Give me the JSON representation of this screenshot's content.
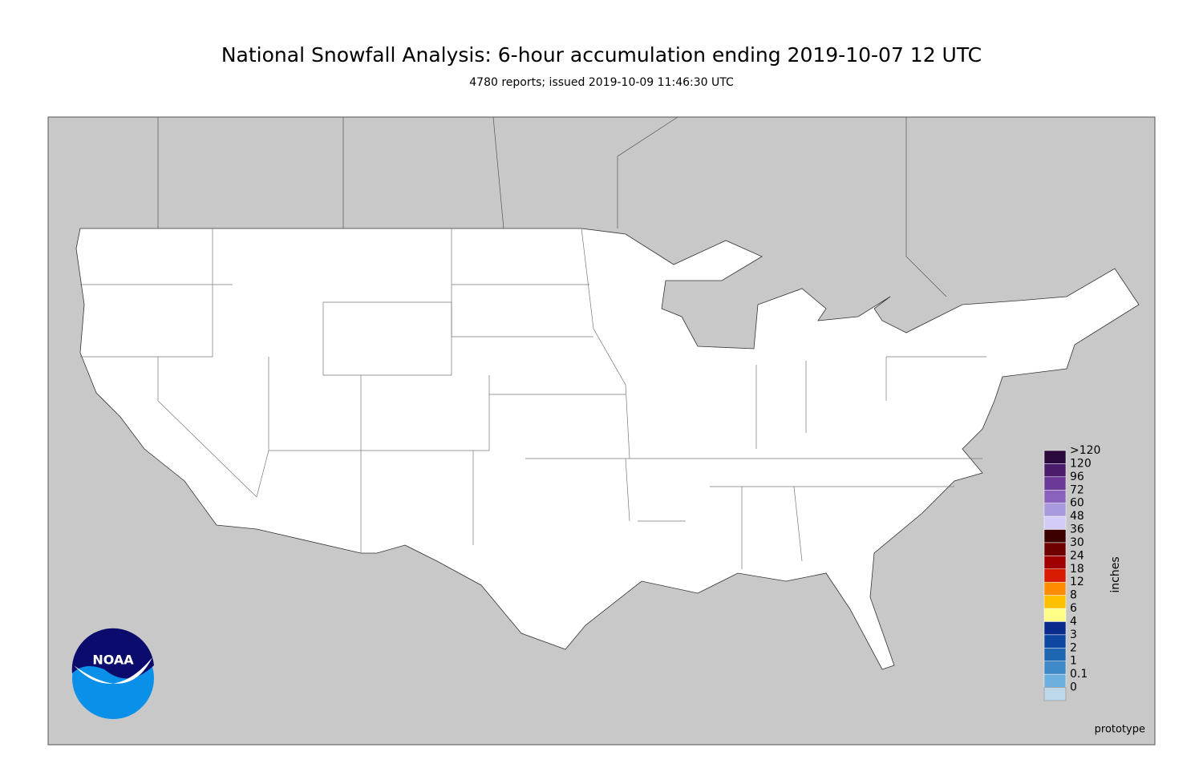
{
  "header": {
    "title": "National Snowfall Analysis: 6-hour accumulation ending 2019-10-07 12 UTC",
    "subtitle": "4780 reports; issued 2019-10-09 11:46:30 UTC"
  },
  "legend": {
    "unit": "inches",
    "bins": [
      {
        "label": ">120",
        "color": "#2a0a3d"
      },
      {
        "label": "120",
        "color": "#4a1a6b"
      },
      {
        "label": "96",
        "color": "#6b3a96"
      },
      {
        "label": "72",
        "color": "#8a62bb"
      },
      {
        "label": "60",
        "color": "#a898dc"
      },
      {
        "label": "48",
        "color": "#d2ccf7"
      },
      {
        "label": "36",
        "color": "#3d0000"
      },
      {
        "label": "30",
        "color": "#6e0000"
      },
      {
        "label": "24",
        "color": "#a00000"
      },
      {
        "label": "18",
        "color": "#d81a00"
      },
      {
        "label": "12",
        "color": "#ff8c00"
      },
      {
        "label": "8",
        "color": "#ffc000"
      },
      {
        "label": "6",
        "color": "#ffff88"
      },
      {
        "label": "4",
        "color": "#0a2a8c"
      },
      {
        "label": "3",
        "color": "#0d47a1"
      },
      {
        "label": "2",
        "color": "#1e66b0"
      },
      {
        "label": "1",
        "color": "#4089c8"
      },
      {
        "label": "0.1",
        "color": "#6cafdc"
      },
      {
        "label": "0",
        "color": "#bcd8ea"
      }
    ]
  },
  "note": "prototype",
  "logo": "NOAA"
}
